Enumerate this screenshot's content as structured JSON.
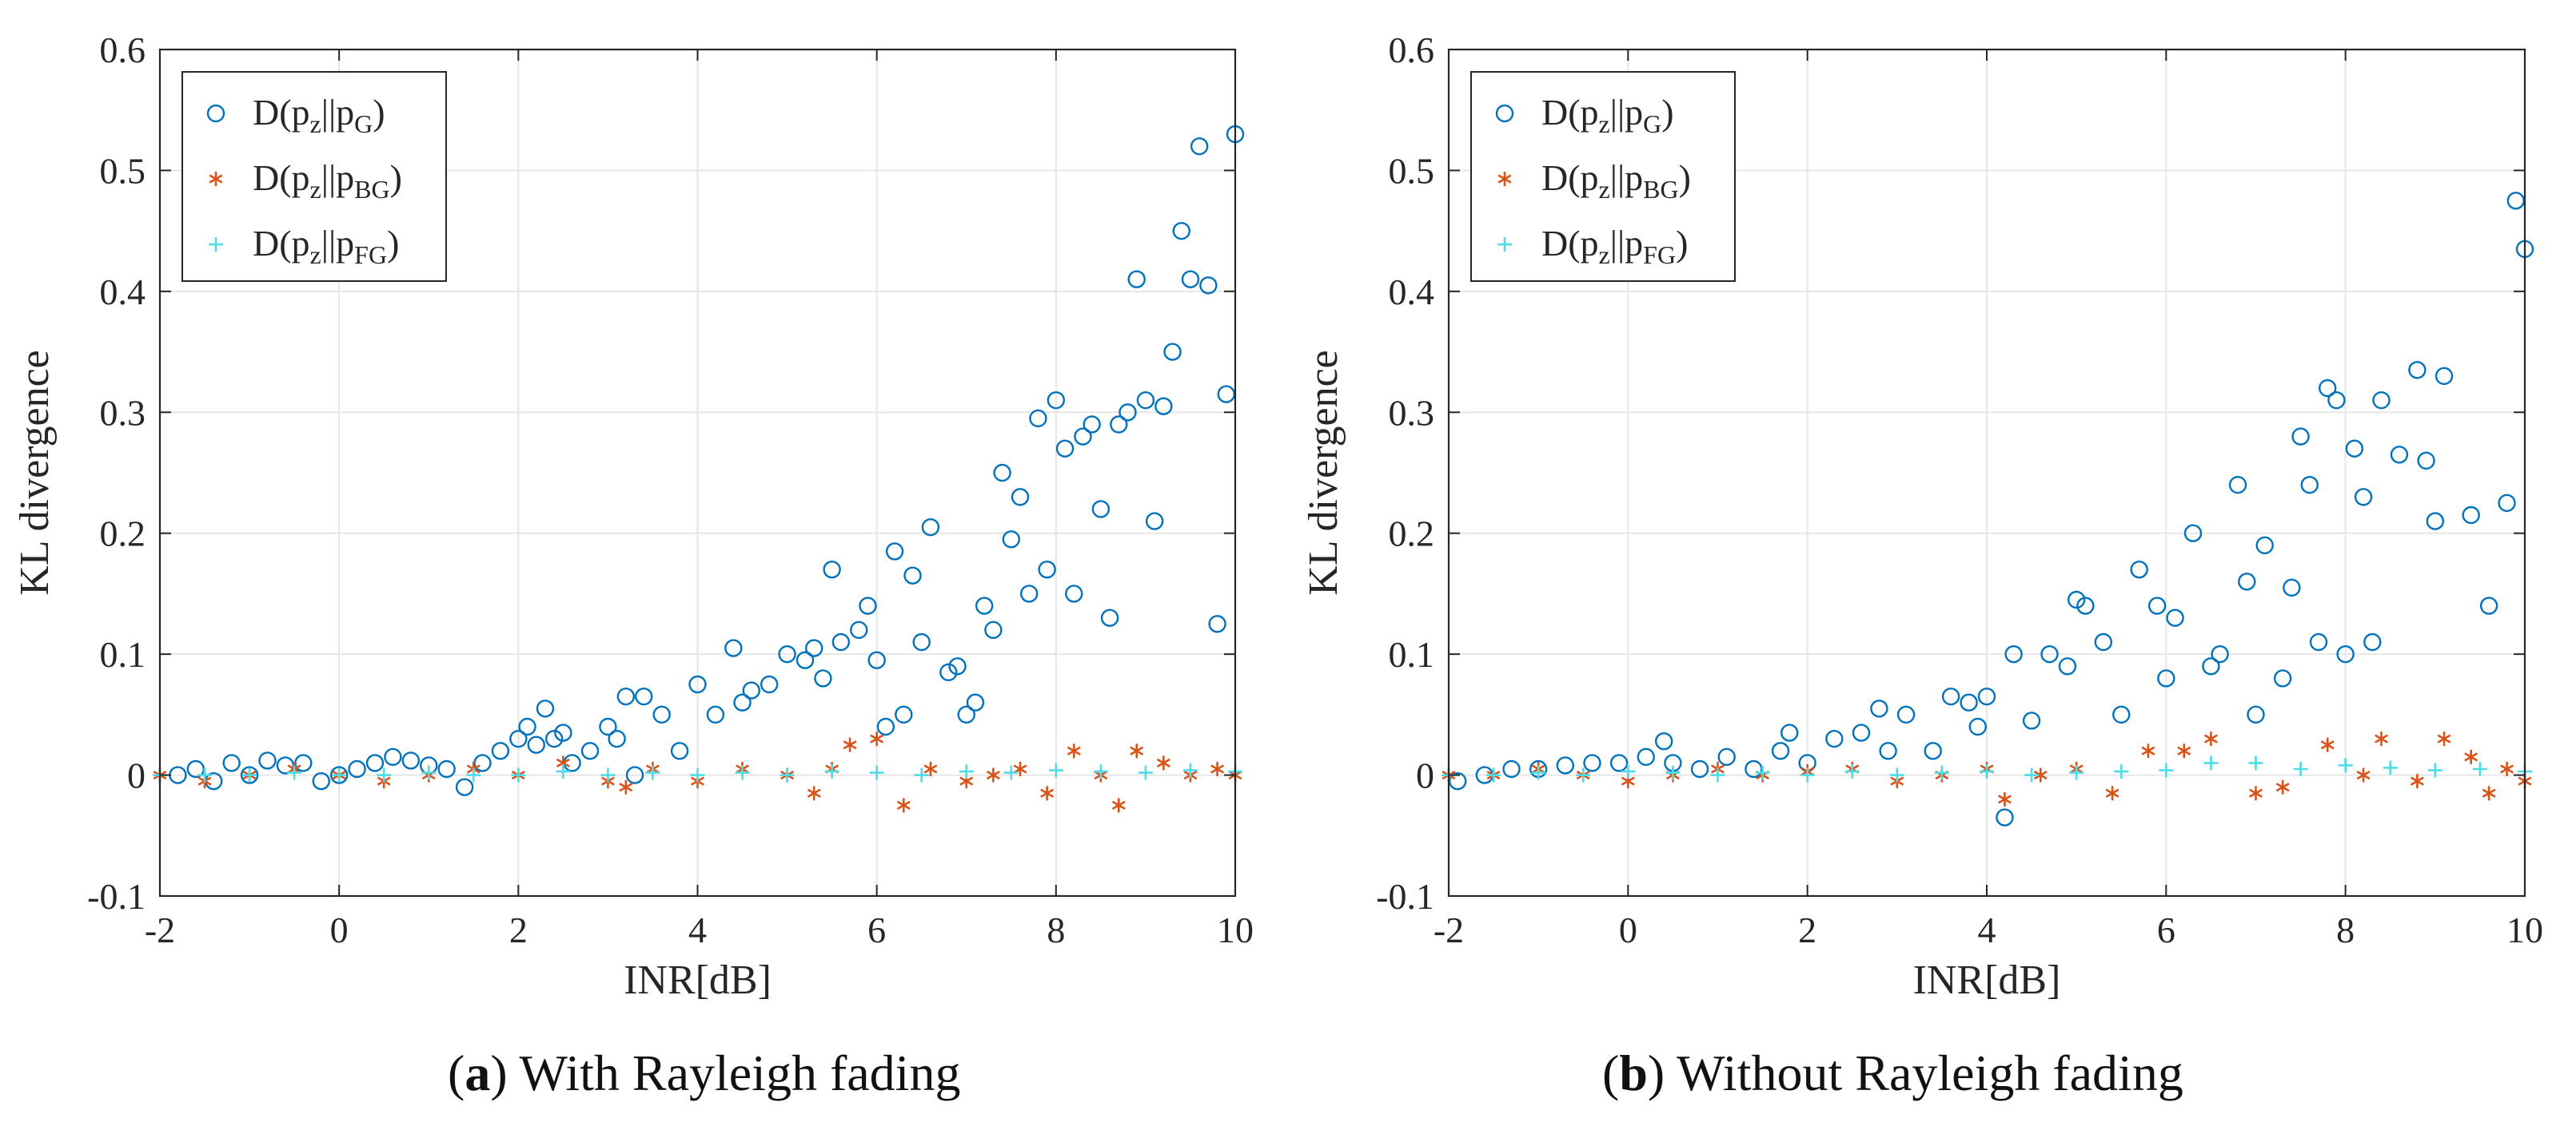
{
  "panels": [
    {
      "caption_letter": "a",
      "caption_text": "With Rayleigh fading"
    },
    {
      "caption_letter": "b",
      "caption_text": "Without Rayleigh fading"
    }
  ],
  "legend": [
    {
      "main": "D(p",
      "sub1": "z",
      "mid": "||p",
      "sub2": "G",
      "end": ")"
    },
    {
      "main": "D(p",
      "sub1": "z",
      "mid": "||p",
      "sub2": "BG",
      "end": ")"
    },
    {
      "main": "D(p",
      "sub1": "z",
      "mid": "||p",
      "sub2": "FG",
      "end": ")"
    }
  ],
  "colors": {
    "G": "#0072BD",
    "BG": "#D95319",
    "FG": "#4DDDE8",
    "grid": "#e6e6e6",
    "axis": "#262626"
  },
  "chart_data": [
    {
      "type": "scatter",
      "caption": "With Rayleigh fading",
      "xlabel": "INR[dB]",
      "ylabel": "KL divergence",
      "xlim": [
        -2,
        10
      ],
      "ylim": [
        -0.1,
        0.6
      ],
      "xticks": [
        -2,
        0,
        2,
        4,
        6,
        8,
        10
      ],
      "yticks": [
        -0.1,
        0,
        0.1,
        0.2,
        0.3,
        0.4,
        0.5,
        0.6
      ],
      "grid": true,
      "legend_position": "top-left",
      "series": [
        {
          "name": "D(pz||pG)",
          "marker": "circle",
          "x": [
            -1.8,
            -1.6,
            -1.4,
            -1.2,
            -1.0,
            -0.8,
            -0.6,
            -0.4,
            -0.2,
            0.0,
            0.2,
            0.4,
            0.6,
            0.8,
            1.0,
            1.2,
            1.4,
            1.6,
            1.8,
            2.0,
            2.1,
            2.2,
            2.3,
            2.4,
            2.5,
            2.6,
            2.8,
            3.0,
            3.1,
            3.2,
            3.3,
            3.4,
            3.6,
            3.8,
            4.0,
            4.2,
            4.4,
            4.5,
            4.6,
            4.8,
            5.0,
            5.2,
            5.3,
            5.4,
            5.5,
            5.6,
            5.8,
            5.9,
            6.0,
            6.1,
            6.2,
            6.3,
            6.4,
            6.5,
            6.6,
            6.8,
            6.9,
            7.0,
            7.1,
            7.2,
            7.3,
            7.4,
            7.5,
            7.6,
            7.7,
            7.8,
            7.9,
            8.0,
            8.1,
            8.2,
            8.3,
            8.4,
            8.5,
            8.6,
            8.7,
            8.8,
            8.9,
            9.0,
            9.1,
            9.2,
            9.3,
            9.4,
            9.5,
            9.6,
            9.7,
            9.8,
            9.9,
            10.0
          ],
          "y": [
            0.0,
            0.005,
            -0.005,
            0.01,
            0.0,
            0.012,
            0.008,
            0.01,
            -0.005,
            0.0,
            0.005,
            0.01,
            0.015,
            0.012,
            0.008,
            0.005,
            -0.01,
            0.01,
            0.02,
            0.03,
            0.04,
            0.025,
            0.055,
            0.03,
            0.035,
            0.01,
            0.02,
            0.04,
            0.03,
            0.065,
            0.0,
            0.065,
            0.05,
            0.02,
            0.075,
            0.05,
            0.105,
            0.06,
            0.07,
            0.075,
            0.1,
            0.095,
            0.105,
            0.08,
            0.17,
            0.11,
            0.12,
            0.14,
            0.095,
            0.04,
            0.185,
            0.05,
            0.165,
            0.11,
            0.205,
            0.085,
            0.09,
            0.05,
            0.06,
            0.14,
            0.12,
            0.25,
            0.195,
            0.23,
            0.15,
            0.295,
            0.17,
            0.31,
            0.27,
            0.15,
            0.28,
            0.29,
            0.22,
            0.13,
            0.29,
            0.3,
            0.41,
            0.31,
            0.21,
            0.305,
            0.35,
            0.45,
            0.41,
            0.52,
            0.405,
            0.125,
            0.315,
            0.53
          ]
        },
        {
          "name": "D(pz||pBG)",
          "marker": "asterisk",
          "x": [
            -2,
            -1.5,
            -1.0,
            -0.5,
            0.0,
            0.5,
            1.0,
            1.5,
            2.0,
            2.5,
            3.0,
            3.2,
            3.5,
            4.0,
            4.5,
            5.0,
            5.3,
            5.5,
            5.7,
            6.0,
            6.3,
            6.6,
            7.0,
            7.3,
            7.6,
            7.9,
            8.2,
            8.5,
            8.7,
            8.9,
            9.2,
            9.5,
            9.8,
            10.0
          ],
          "y": [
            0.0,
            -0.005,
            0.0,
            0.005,
            0.0,
            -0.005,
            0.0,
            0.005,
            0.0,
            0.01,
            -0.005,
            -0.01,
            0.005,
            -0.005,
            0.005,
            0.0,
            -0.015,
            0.005,
            0.025,
            0.03,
            -0.025,
            0.005,
            -0.005,
            0.0,
            0.005,
            -0.015,
            0.02,
            0.0,
            -0.025,
            0.02,
            0.01,
            0.0,
            0.005,
            0.0
          ]
        },
        {
          "name": "D(pz||pFG)",
          "marker": "plus",
          "x": [
            -2,
            -1.5,
            -1.0,
            -0.5,
            0.0,
            0.5,
            1.0,
            1.5,
            2.0,
            2.5,
            3.0,
            3.5,
            4.0,
            4.5,
            5.0,
            5.5,
            6.0,
            6.5,
            7.0,
            7.5,
            8.0,
            8.5,
            9.0,
            9.5,
            10.0
          ],
          "y": [
            0.0,
            0.0,
            0.0,
            0.002,
            0.0,
            0.0,
            0.002,
            0.0,
            0.0,
            0.003,
            0.0,
            0.002,
            0.0,
            0.002,
            0.0,
            0.003,
            0.002,
            0.0,
            0.003,
            0.002,
            0.004,
            0.003,
            0.002,
            0.004,
            0.003
          ]
        }
      ]
    },
    {
      "type": "scatter",
      "caption": "Without Rayleigh fading",
      "xlabel": "INR[dB]",
      "ylabel": "KL divergence",
      "xlim": [
        -2,
        10
      ],
      "ylim": [
        -0.1,
        0.6
      ],
      "xticks": [
        -2,
        0,
        2,
        4,
        6,
        8,
        10
      ],
      "yticks": [
        -0.1,
        0,
        0.1,
        0.2,
        0.3,
        0.4,
        0.5,
        0.6
      ],
      "grid": true,
      "legend_position": "top-left",
      "series": [
        {
          "name": "D(pz||pG)",
          "marker": "circle",
          "x": [
            -1.9,
            -1.6,
            -1.3,
            -1.0,
            -0.7,
            -0.4,
            -0.1,
            0.2,
            0.4,
            0.5,
            0.8,
            1.1,
            1.4,
            1.7,
            1.8,
            2.0,
            2.3,
            2.6,
            2.8,
            2.9,
            3.1,
            3.4,
            3.6,
            3.8,
            3.9,
            4.0,
            4.2,
            4.3,
            4.5,
            4.7,
            4.9,
            5.0,
            5.1,
            5.3,
            5.5,
            5.7,
            5.9,
            6.0,
            6.1,
            6.3,
            6.5,
            6.6,
            6.8,
            6.9,
            7.0,
            7.1,
            7.3,
            7.4,
            7.5,
            7.6,
            7.7,
            7.8,
            7.9,
            8.0,
            8.1,
            8.2,
            8.3,
            8.4,
            8.6,
            8.8,
            8.9,
            9.0,
            9.1,
            9.4,
            9.6,
            9.8,
            9.9,
            10.0
          ],
          "y": [
            -0.005,
            0.0,
            0.005,
            0.005,
            0.008,
            0.01,
            0.01,
            0.015,
            0.028,
            0.01,
            0.005,
            0.015,
            0.005,
            0.02,
            0.035,
            0.01,
            0.03,
            0.035,
            0.055,
            0.02,
            0.05,
            0.02,
            0.065,
            0.06,
            0.04,
            0.065,
            -0.035,
            0.1,
            0.045,
            0.1,
            0.09,
            0.145,
            0.14,
            0.11,
            0.05,
            0.17,
            0.14,
            0.08,
            0.13,
            0.2,
            0.09,
            0.1,
            0.24,
            0.16,
            0.05,
            0.19,
            0.08,
            0.155,
            0.28,
            0.24,
            0.11,
            0.32,
            0.31,
            0.1,
            0.27,
            0.23,
            0.11,
            0.31,
            0.265,
            0.335,
            0.26,
            0.21,
            0.33,
            0.215,
            0.14,
            0.225,
            0.475,
            0.435
          ]
        },
        {
          "name": "D(pz||pBG)",
          "marker": "asterisk",
          "x": [
            -2,
            -1.5,
            -1.0,
            -0.5,
            0.0,
            0.5,
            1.0,
            1.5,
            2.0,
            2.5,
            3.0,
            3.5,
            4.0,
            4.2,
            4.6,
            5.0,
            5.4,
            5.8,
            6.2,
            6.5,
            7.0,
            7.3,
            7.8,
            8.2,
            8.4,
            8.8,
            9.1,
            9.4,
            9.6,
            9.8,
            10.0
          ],
          "y": [
            0.0,
            0.0,
            0.005,
            0.0,
            -0.005,
            0.0,
            0.005,
            0.0,
            0.003,
            0.005,
            -0.005,
            0.0,
            0.005,
            -0.02,
            0.0,
            0.005,
            -0.015,
            0.02,
            0.02,
            0.03,
            -0.015,
            -0.01,
            0.025,
            0.0,
            0.03,
            -0.005,
            0.03,
            0.015,
            -0.015,
            0.005,
            -0.005
          ]
        },
        {
          "name": "D(pz||pFG)",
          "marker": "plus",
          "x": [
            -2,
            -1.5,
            -1.0,
            -0.5,
            0.0,
            0.5,
            1.0,
            1.5,
            2.0,
            2.5,
            3.0,
            3.5,
            4.0,
            4.5,
            5.0,
            5.5,
            6.0,
            6.5,
            7.0,
            7.5,
            8.0,
            8.5,
            9.0,
            9.5,
            10.0
          ],
          "y": [
            0.0,
            0.0,
            0.002,
            0.0,
            0.003,
            0.002,
            0.0,
            0.002,
            0.0,
            0.003,
            0.0,
            0.002,
            0.003,
            0.0,
            0.002,
            0.003,
            0.004,
            0.01,
            0.01,
            0.005,
            0.008,
            0.006,
            0.004,
            0.005,
            0.003
          ]
        }
      ]
    }
  ]
}
